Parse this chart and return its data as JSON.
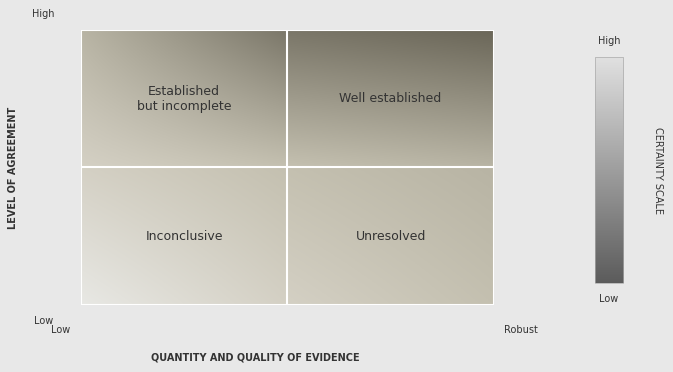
{
  "bg_color": "#e8e8e8",
  "quadrant_labels": {
    "top_left": "Established\nbut incomplete",
    "top_right": "Well established",
    "bottom_left": "Inconclusive",
    "bottom_right": "Unresolved"
  },
  "y_axis_label": "LEVEL OF AGREEMENT",
  "x_axis_label": "QUANTITY AND QUALITY OF EVIDENCE",
  "y_high_label": "High",
  "y_low_label": "Low",
  "x_low_label": "Low",
  "x_robust_label": "Robust",
  "colorbar_label": "CERTAINTY SCALE",
  "colorbar_high": "High",
  "colorbar_low": "Low",
  "font_size_axis_title": 7,
  "font_size_quadrant": 9,
  "text_color": "#333333",
  "c_white": "#e8e8e4",
  "c_light": "#d4d0c4",
  "c_med_light": "#c4c0b0",
  "c_medium": "#b8b4a4",
  "c_dark": "#7a7668",
  "c_darkest": "#6a6658"
}
